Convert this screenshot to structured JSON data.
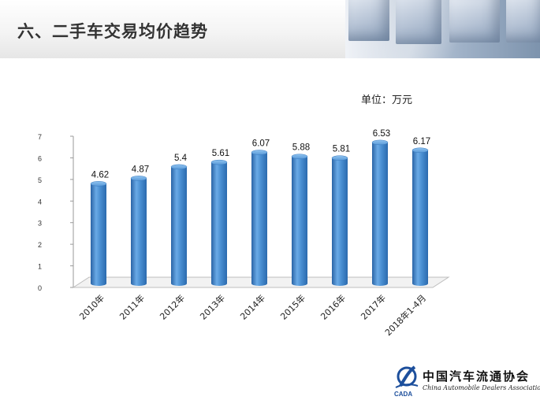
{
  "header": {
    "title": "六、二手车交易均价趋势"
  },
  "unit_label": "单位：万元",
  "chart_data": {
    "type": "bar",
    "title": "",
    "xlabel": "",
    "ylabel": "",
    "categories": [
      "2010年",
      "2011年",
      "2012年",
      "2013年",
      "2014年",
      "2015年",
      "2016年",
      "2017年",
      "2018年1-4月"
    ],
    "values": [
      4.62,
      4.87,
      5.4,
      5.61,
      6.07,
      5.88,
      5.81,
      6.53,
      6.17
    ],
    "value_labels": [
      "4.62",
      "4.87",
      "5.4",
      "5.61",
      "6.07",
      "5.88",
      "5.81",
      "6.53",
      "6.17"
    ],
    "ylim": [
      0,
      7
    ],
    "yticks": [
      "0",
      "1",
      "2",
      "3",
      "4",
      "5",
      "6",
      "7"
    ],
    "bar_style": "3d-cylinder",
    "bar_color": "#3f82c6",
    "grid": false,
    "legend": "none"
  },
  "logo": {
    "name_cn": "中国汽车流通协会",
    "name_en": "China Automobile Dealers Association",
    "mark_text": "CADA",
    "icon": "cada-logo-icon"
  }
}
